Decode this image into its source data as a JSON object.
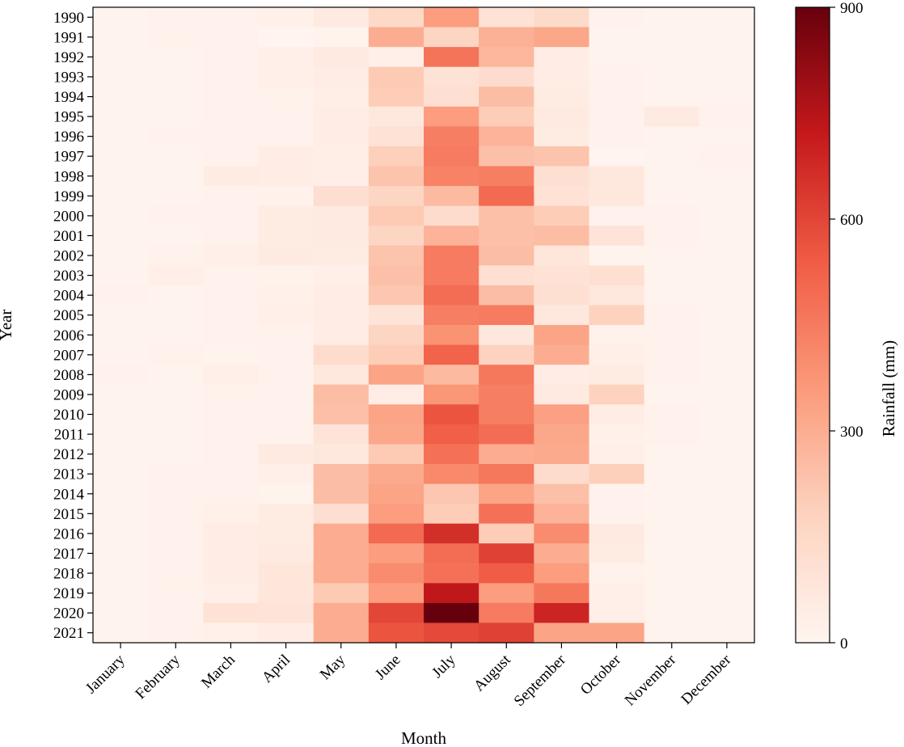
{
  "chart_data": {
    "type": "heatmap",
    "xlabel": "Month",
    "ylabel": "Year",
    "colorbar_label": "Rainfall (mm)",
    "colorbar_range": [
      0,
      900
    ],
    "colorbar_ticks": [
      0,
      300,
      600,
      900
    ],
    "colorscale": [
      "#fff5f0",
      "#fdd3c0",
      "#fb9a7a",
      "#f05c45",
      "#c5191b",
      "#67000d"
    ],
    "months": [
      "January",
      "February",
      "March",
      "April",
      "May",
      "June",
      "July",
      "August",
      "September",
      "October",
      "November",
      "December"
    ],
    "years": [
      "1990",
      "1991",
      "1992",
      "1993",
      "1994",
      "1995",
      "1996",
      "1997",
      "1998",
      "1999",
      "2000",
      "2001",
      "2002",
      "2003",
      "2004",
      "2005",
      "2006",
      "2007",
      "2008",
      "2009",
      "2010",
      "2011",
      "2012",
      "2013",
      "2014",
      "2015",
      "2016",
      "2017",
      "2018",
      "2019",
      "2020",
      "2021"
    ],
    "values": [
      [
        10,
        15,
        20,
        25,
        60,
        150,
        350,
        100,
        140,
        20,
        10,
        10
      ],
      [
        10,
        15,
        15,
        5,
        10,
        300,
        170,
        290,
        320,
        10,
        10,
        12
      ],
      [
        10,
        12,
        15,
        30,
        60,
        30,
        470,
        270,
        40,
        10,
        10,
        10
      ],
      [
        12,
        10,
        20,
        30,
        40,
        210,
        100,
        130,
        40,
        20,
        10,
        10
      ],
      [
        10,
        10,
        15,
        20,
        35,
        200,
        110,
        250,
        50,
        20,
        10,
        10
      ],
      [
        10,
        12,
        20,
        20,
        40,
        70,
        350,
        200,
        60,
        15,
        60,
        15
      ],
      [
        12,
        15,
        20,
        20,
        40,
        100,
        440,
        280,
        50,
        15,
        10,
        10
      ],
      [
        10,
        10,
        15,
        40,
        35,
        190,
        450,
        240,
        230,
        5,
        10,
        15
      ],
      [
        10,
        10,
        50,
        40,
        35,
        230,
        430,
        440,
        110,
        70,
        10,
        10
      ],
      [
        10,
        12,
        15,
        20,
        120,
        170,
        260,
        500,
        100,
        70,
        10,
        10
      ],
      [
        10,
        15,
        15,
        50,
        60,
        210,
        130,
        240,
        200,
        20,
        15,
        10
      ],
      [
        10,
        12,
        20,
        50,
        60,
        170,
        280,
        240,
        250,
        90,
        15,
        10
      ],
      [
        10,
        15,
        30,
        60,
        50,
        230,
        450,
        250,
        80,
        10,
        10,
        10
      ],
      [
        10,
        30,
        20,
        20,
        30,
        240,
        450,
        110,
        100,
        110,
        10,
        10
      ],
      [
        15,
        10,
        15,
        25,
        40,
        220,
        490,
        250,
        110,
        70,
        10,
        10
      ],
      [
        10,
        10,
        15,
        30,
        40,
        90,
        440,
        450,
        70,
        180,
        15,
        10
      ],
      [
        12,
        10,
        15,
        20,
        40,
        170,
        380,
        70,
        330,
        20,
        15,
        10
      ],
      [
        10,
        20,
        10,
        20,
        130,
        200,
        520,
        180,
        300,
        30,
        15,
        10
      ],
      [
        15,
        10,
        30,
        15,
        70,
        330,
        260,
        460,
        40,
        50,
        15,
        10
      ],
      [
        10,
        10,
        15,
        20,
        250,
        40,
        370,
        440,
        60,
        180,
        10,
        10
      ],
      [
        10,
        10,
        15,
        20,
        240,
        330,
        560,
        440,
        340,
        40,
        15,
        10
      ],
      [
        10,
        12,
        15,
        20,
        90,
        320,
        530,
        490,
        320,
        25,
        15,
        10
      ],
      [
        10,
        12,
        15,
        60,
        70,
        210,
        480,
        300,
        310,
        30,
        10,
        10
      ],
      [
        10,
        20,
        15,
        30,
        250,
        310,
        410,
        460,
        130,
        190,
        10,
        10
      ],
      [
        10,
        15,
        15,
        10,
        250,
        330,
        220,
        330,
        240,
        15,
        10,
        10
      ],
      [
        12,
        15,
        25,
        50,
        120,
        350,
        200,
        480,
        280,
        15,
        10,
        10
      ],
      [
        10,
        15,
        40,
        50,
        300,
        500,
        660,
        200,
        400,
        60,
        10,
        10
      ],
      [
        10,
        15,
        40,
        60,
        300,
        350,
        490,
        610,
        300,
        50,
        10,
        10
      ],
      [
        10,
        15,
        40,
        80,
        300,
        400,
        480,
        540,
        350,
        20,
        10,
        10
      ],
      [
        10,
        20,
        30,
        80,
        210,
        350,
        730,
        350,
        460,
        30,
        10,
        10
      ],
      [
        12,
        20,
        100,
        90,
        300,
        600,
        900,
        450,
        690,
        30,
        10,
        10
      ],
      [
        10,
        15,
        25,
        40,
        300,
        560,
        590,
        610,
        330,
        330,
        10,
        10
      ]
    ]
  }
}
